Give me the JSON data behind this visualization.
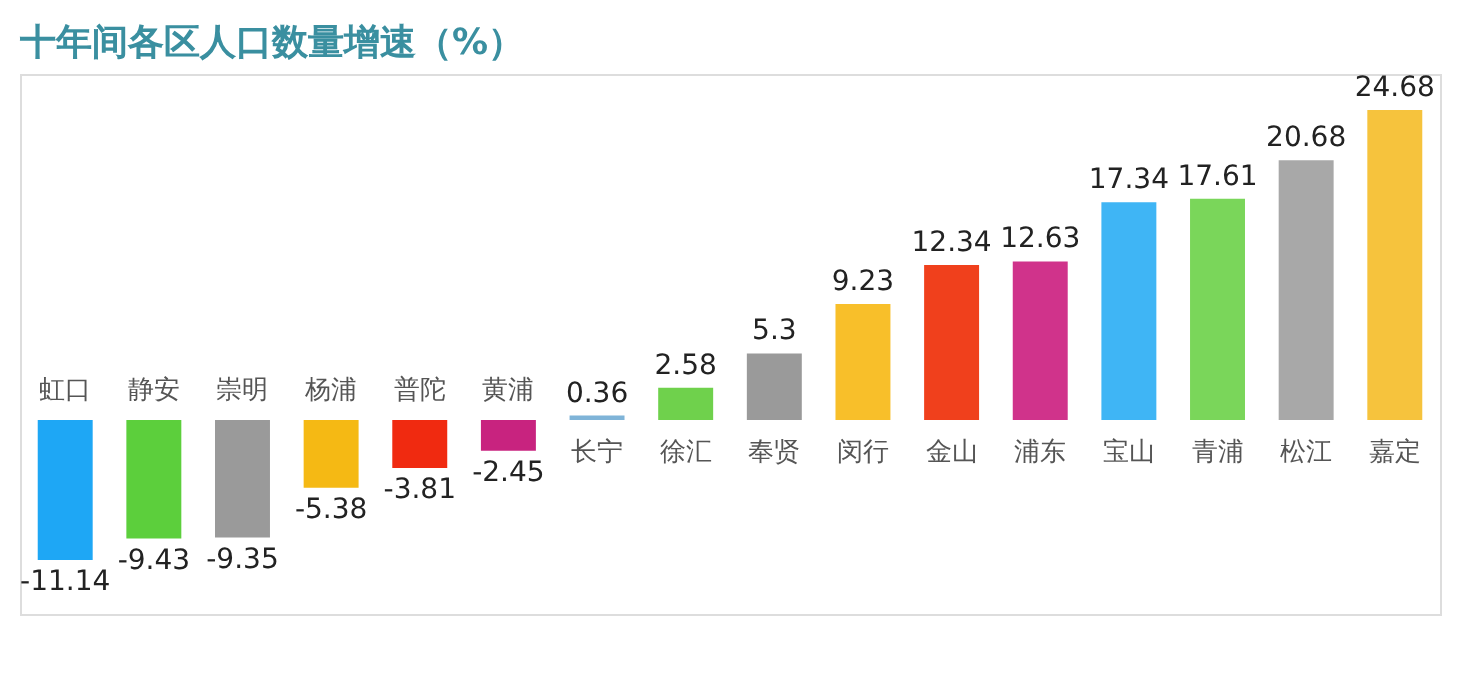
{
  "chart_data": {
    "type": "bar",
    "title": "十年间各区人口数量增速（%）",
    "categories": [
      "虹口",
      "静安",
      "崇明",
      "杨浦",
      "普陀",
      "黄浦",
      "长宁",
      "徐汇",
      "奉贤",
      "闵行",
      "金山",
      "浦东",
      "宝山",
      "青浦",
      "松江",
      "嘉定"
    ],
    "values": [
      -11.14,
      -9.43,
      -9.35,
      -5.38,
      -3.81,
      -2.45,
      0.36,
      2.58,
      5.3,
      9.23,
      12.34,
      12.63,
      17.34,
      17.61,
      20.68,
      24.68
    ],
    "colors": [
      "#1ea7f5",
      "#5ccf3c",
      "#9a9a9a",
      "#f5b914",
      "#f02a10",
      "#c8237f",
      "#7fb4d8",
      "#6fd14c",
      "#9a9a9a",
      "#f8bf2a",
      "#f0401c",
      "#d0338b",
      "#3fb5f5",
      "#7ad65a",
      "#a8a8a8",
      "#f6c33d"
    ],
    "data_labels": true
  }
}
